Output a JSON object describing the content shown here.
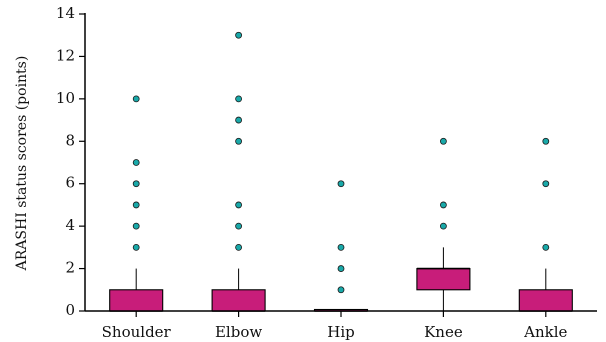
{
  "chart_data": {
    "type": "boxplot",
    "ylabel": "ARASHI status scores (points)",
    "ylim": [
      0,
      14
    ],
    "yticks": [
      0,
      2,
      4,
      6,
      8,
      10,
      12,
      14
    ],
    "grid": false,
    "box_color": "#c81d7a",
    "outlier_color": "#19a9a9",
    "categories": [
      "Shoulder",
      "Elbow",
      "Hip",
      "Knee",
      "Ankle"
    ],
    "boxes": [
      {
        "category": "Shoulder",
        "whisker_low": 0,
        "q1": 0,
        "median": 0,
        "q3": 1,
        "whisker_high": 2,
        "outliers": [
          3,
          4,
          5,
          6,
          7,
          10
        ]
      },
      {
        "category": "Elbow",
        "whisker_low": 0,
        "q1": 0,
        "median": 0,
        "q3": 1,
        "whisker_high": 2,
        "outliers": [
          3,
          4,
          5,
          8,
          9,
          10,
          13
        ]
      },
      {
        "category": "Hip",
        "whisker_low": 0,
        "q1": 0,
        "median": 0,
        "q3": 0,
        "whisker_high": 0,
        "outliers": [
          1,
          2,
          3,
          6
        ]
      },
      {
        "category": "Knee",
        "whisker_low": 0,
        "q1": 1,
        "median": 2,
        "q3": 2,
        "whisker_high": 3,
        "outliers": [
          4,
          5,
          8
        ]
      },
      {
        "category": "Ankle",
        "whisker_low": 0,
        "q1": 0,
        "median": 0,
        "q3": 1,
        "whisker_high": 2,
        "outliers": [
          3,
          6,
          8
        ]
      }
    ]
  }
}
